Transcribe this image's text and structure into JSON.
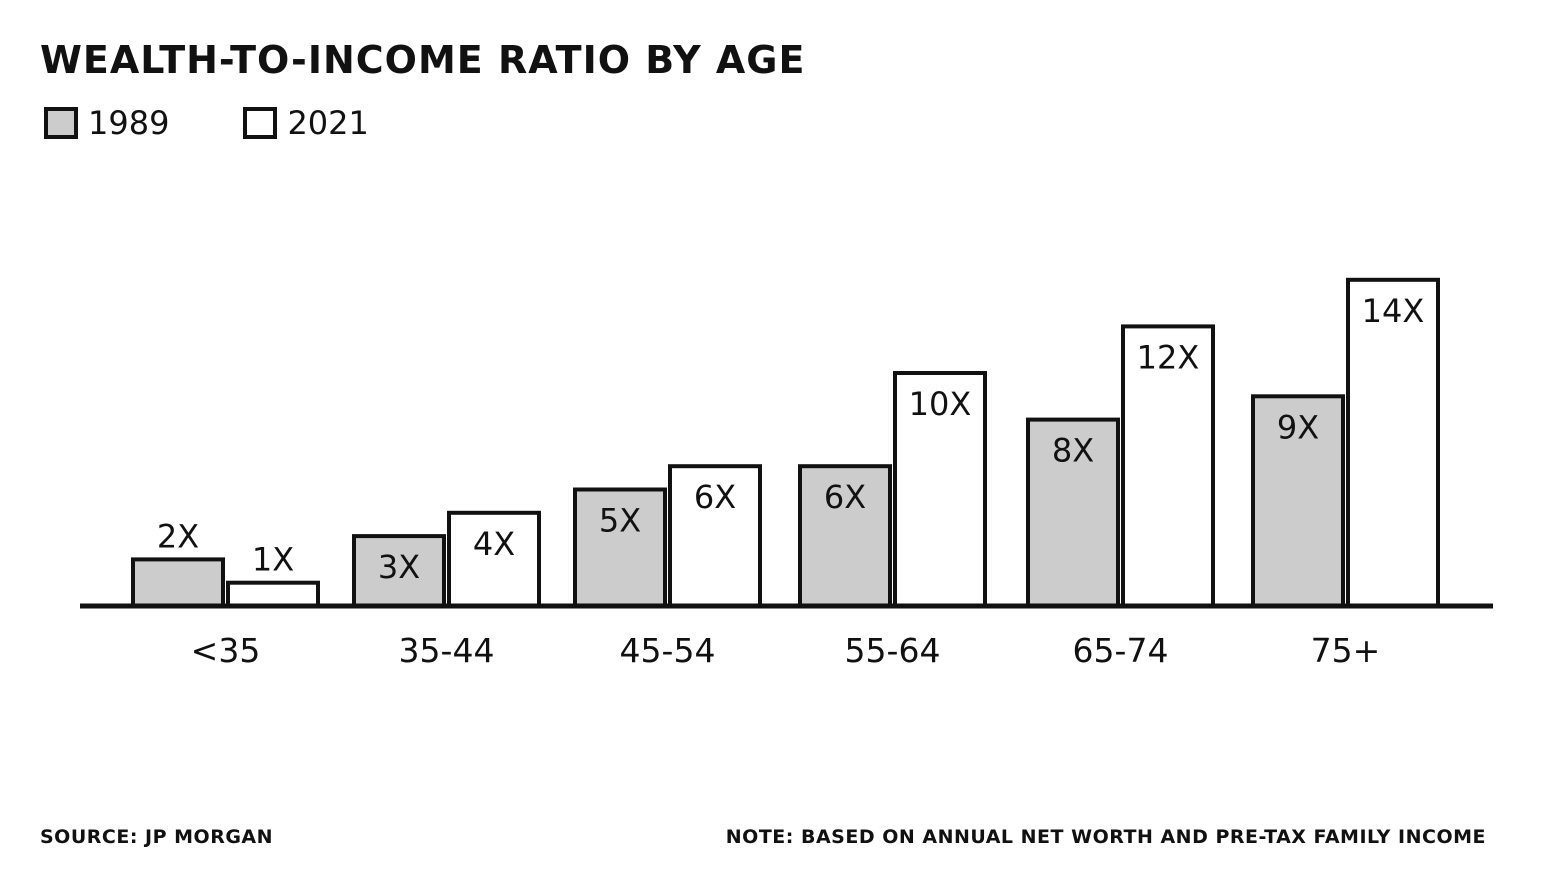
{
  "chart_data": {
    "type": "bar",
    "title": "WEALTH-TO-INCOME RATIO BY AGE",
    "categories": [
      "<35",
      "35-44",
      "45-54",
      "55-64",
      "65-74",
      "75+"
    ],
    "series": [
      {
        "name": "1989",
        "color": "#cccccc",
        "values": [
          2,
          3,
          5,
          6,
          8,
          9
        ],
        "labels": [
          "2X",
          "3X",
          "5X",
          "6X",
          "8X",
          "9X"
        ]
      },
      {
        "name": "2021",
        "color": "#ffffff",
        "values": [
          1,
          4,
          6,
          10,
          12,
          14
        ],
        "labels": [
          "1X",
          "4X",
          "6X",
          "10X",
          "12X",
          "14X"
        ]
      }
    ],
    "ylim": [
      0,
      14
    ],
    "grid": false,
    "legend_position": "top-left"
  },
  "footer": {
    "source": "SOURCE: JP MORGAN",
    "note": "NOTE:  BASED ON ANNUAL NET WORTH AND PRE-TAX FAMILY INCOME"
  }
}
